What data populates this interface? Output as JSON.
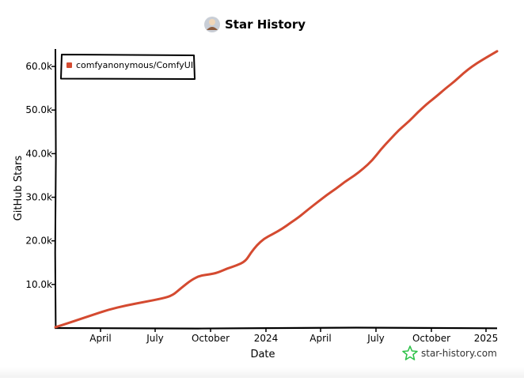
{
  "chart_data": {
    "type": "line",
    "title": "Star History",
    "xlabel": "Date",
    "ylabel": "GitHub Stars",
    "legend_position": "top-left",
    "grid": false,
    "x_tick_labels": [
      "April",
      "July",
      "October",
      "2024",
      "April",
      "July",
      "October",
      "2025"
    ],
    "y_tick_labels": [
      "10.0k",
      "20.0k",
      "30.0k",
      "40.0k",
      "50.0k",
      "60.0k"
    ],
    "y_ticks": [
      10000,
      20000,
      30000,
      40000,
      50000,
      60000
    ],
    "ylim": [
      0,
      64000
    ],
    "xlim": [
      "2023-01-16",
      "2025-01-26"
    ],
    "series": [
      {
        "name": "comfyanonymous/ComfyUI",
        "color": "#d44a30",
        "x": [
          "2023-01-16",
          "2023-02-15",
          "2023-03-15",
          "2023-04-15",
          "2023-05-15",
          "2023-06-15",
          "2023-07-15",
          "2023-08-01",
          "2023-08-15",
          "2023-09-01",
          "2023-09-15",
          "2023-10-01",
          "2023-10-15",
          "2023-11-01",
          "2023-11-15",
          "2023-12-01",
          "2023-12-10",
          "2023-12-20",
          "2024-01-01",
          "2024-01-15",
          "2024-02-01",
          "2024-02-15",
          "2024-03-01",
          "2024-03-15",
          "2024-04-01",
          "2024-04-15",
          "2024-05-01",
          "2024-05-15",
          "2024-06-01",
          "2024-06-15",
          "2024-07-01",
          "2024-07-15",
          "2024-08-01",
          "2024-08-15",
          "2024-09-01",
          "2024-09-15",
          "2024-10-01",
          "2024-10-15",
          "2024-11-01",
          "2024-11-15",
          "2024-12-01",
          "2024-12-15",
          "2025-01-01",
          "2025-01-26"
        ],
        "y": [
          200,
          1500,
          2800,
          4200,
          5200,
          6000,
          6800,
          7500,
          9200,
          11000,
          12000,
          12300,
          12700,
          13700,
          14300,
          15300,
          17300,
          19000,
          20500,
          21500,
          22800,
          24200,
          25600,
          27200,
          29000,
          30500,
          32000,
          33500,
          35000,
          36500,
          38500,
          41000,
          43500,
          45500,
          47500,
          49500,
          51500,
          53000,
          55000,
          56500,
          58500,
          60000,
          61500,
          63500
        ]
      }
    ]
  },
  "branding": {
    "logo_icon": "star-icon",
    "text": "star-history.com",
    "color": "#2fc24a"
  }
}
